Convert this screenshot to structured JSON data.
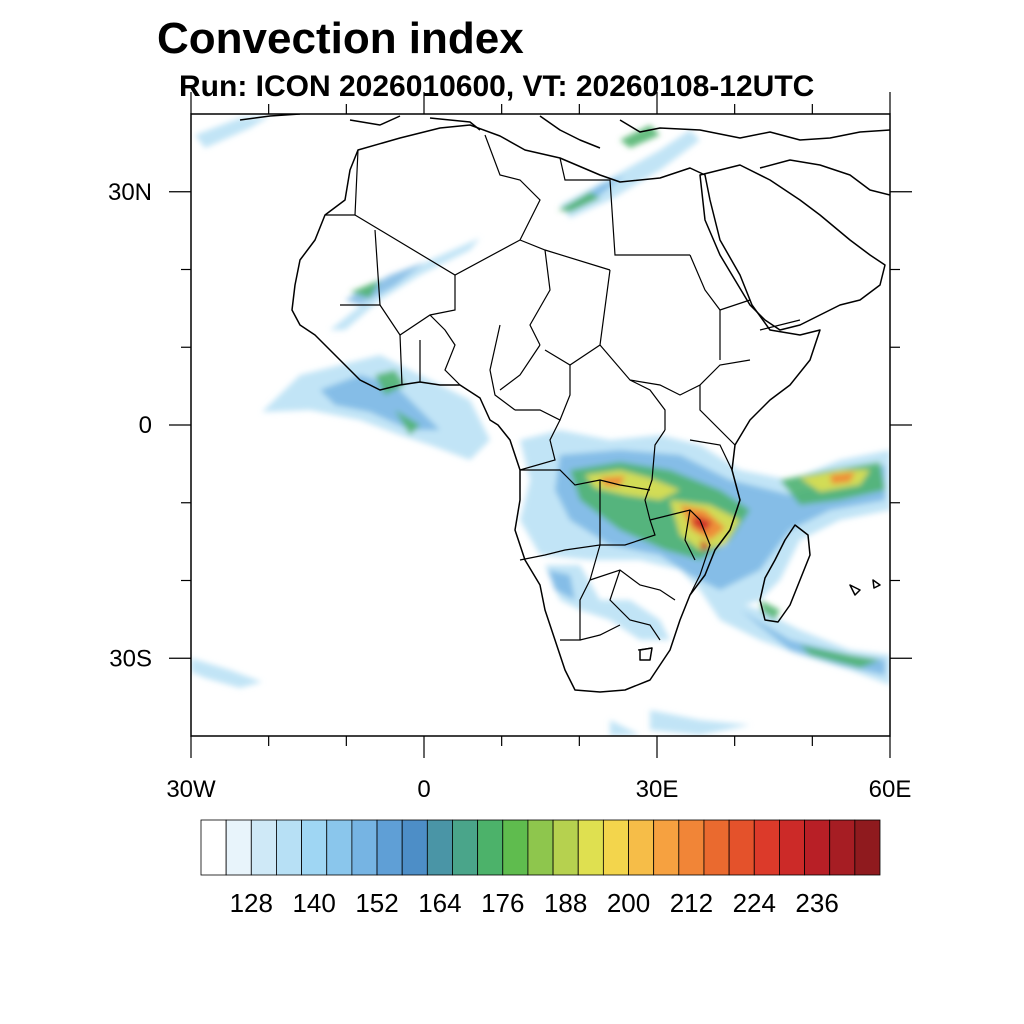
{
  "title": "Convection index",
  "subtitle": "Run: ICON 2026010600,  VT: 20260108-12UTC",
  "axes": {
    "lon_range": [
      -30,
      60
    ],
    "lat_range": [
      -40,
      40
    ],
    "x_ticks": [
      {
        "lon": -30,
        "label": "30W"
      },
      {
        "lon": 0,
        "label": "0"
      },
      {
        "lon": 30,
        "label": "30E"
      },
      {
        "lon": 60,
        "label": "60E"
      }
    ],
    "y_ticks": [
      {
        "lat": 30,
        "label": "30N"
      },
      {
        "lat": 0,
        "label": "0"
      },
      {
        "lat": -30,
        "label": "30S"
      }
    ],
    "minor_lon": [
      -20,
      -10,
      10,
      20,
      40,
      50
    ],
    "minor_lat": [
      20,
      10,
      -10,
      -20
    ]
  },
  "colorbar": {
    "colors": [
      "#ffffff",
      "#e8f4fb",
      "#cfe9f7",
      "#b7e0f5",
      "#9fd6f3",
      "#8ac6ec",
      "#76b4e3",
      "#5f9fd6",
      "#4d8ec7",
      "#4a95a6",
      "#4aa58a",
      "#4cb26a",
      "#5fbc4e",
      "#8ec64d",
      "#b6d14f",
      "#dfe050",
      "#f3d54c",
      "#f6bd48",
      "#f6a140",
      "#f18537",
      "#ea6a2f",
      "#e4522b",
      "#dc3a2a",
      "#cc2a28",
      "#b81f26",
      "#a61d23",
      "#8f1a1e"
    ],
    "labels": [
      "128",
      "140",
      "152",
      "164",
      "176",
      "188",
      "200",
      "212",
      "224",
      "236"
    ]
  },
  "features": {
    "coastline": "Africa and surrounding coasts",
    "convection_max_region": "Zambia, Malawi, Mozambique and southwestern Indian Ocean"
  }
}
